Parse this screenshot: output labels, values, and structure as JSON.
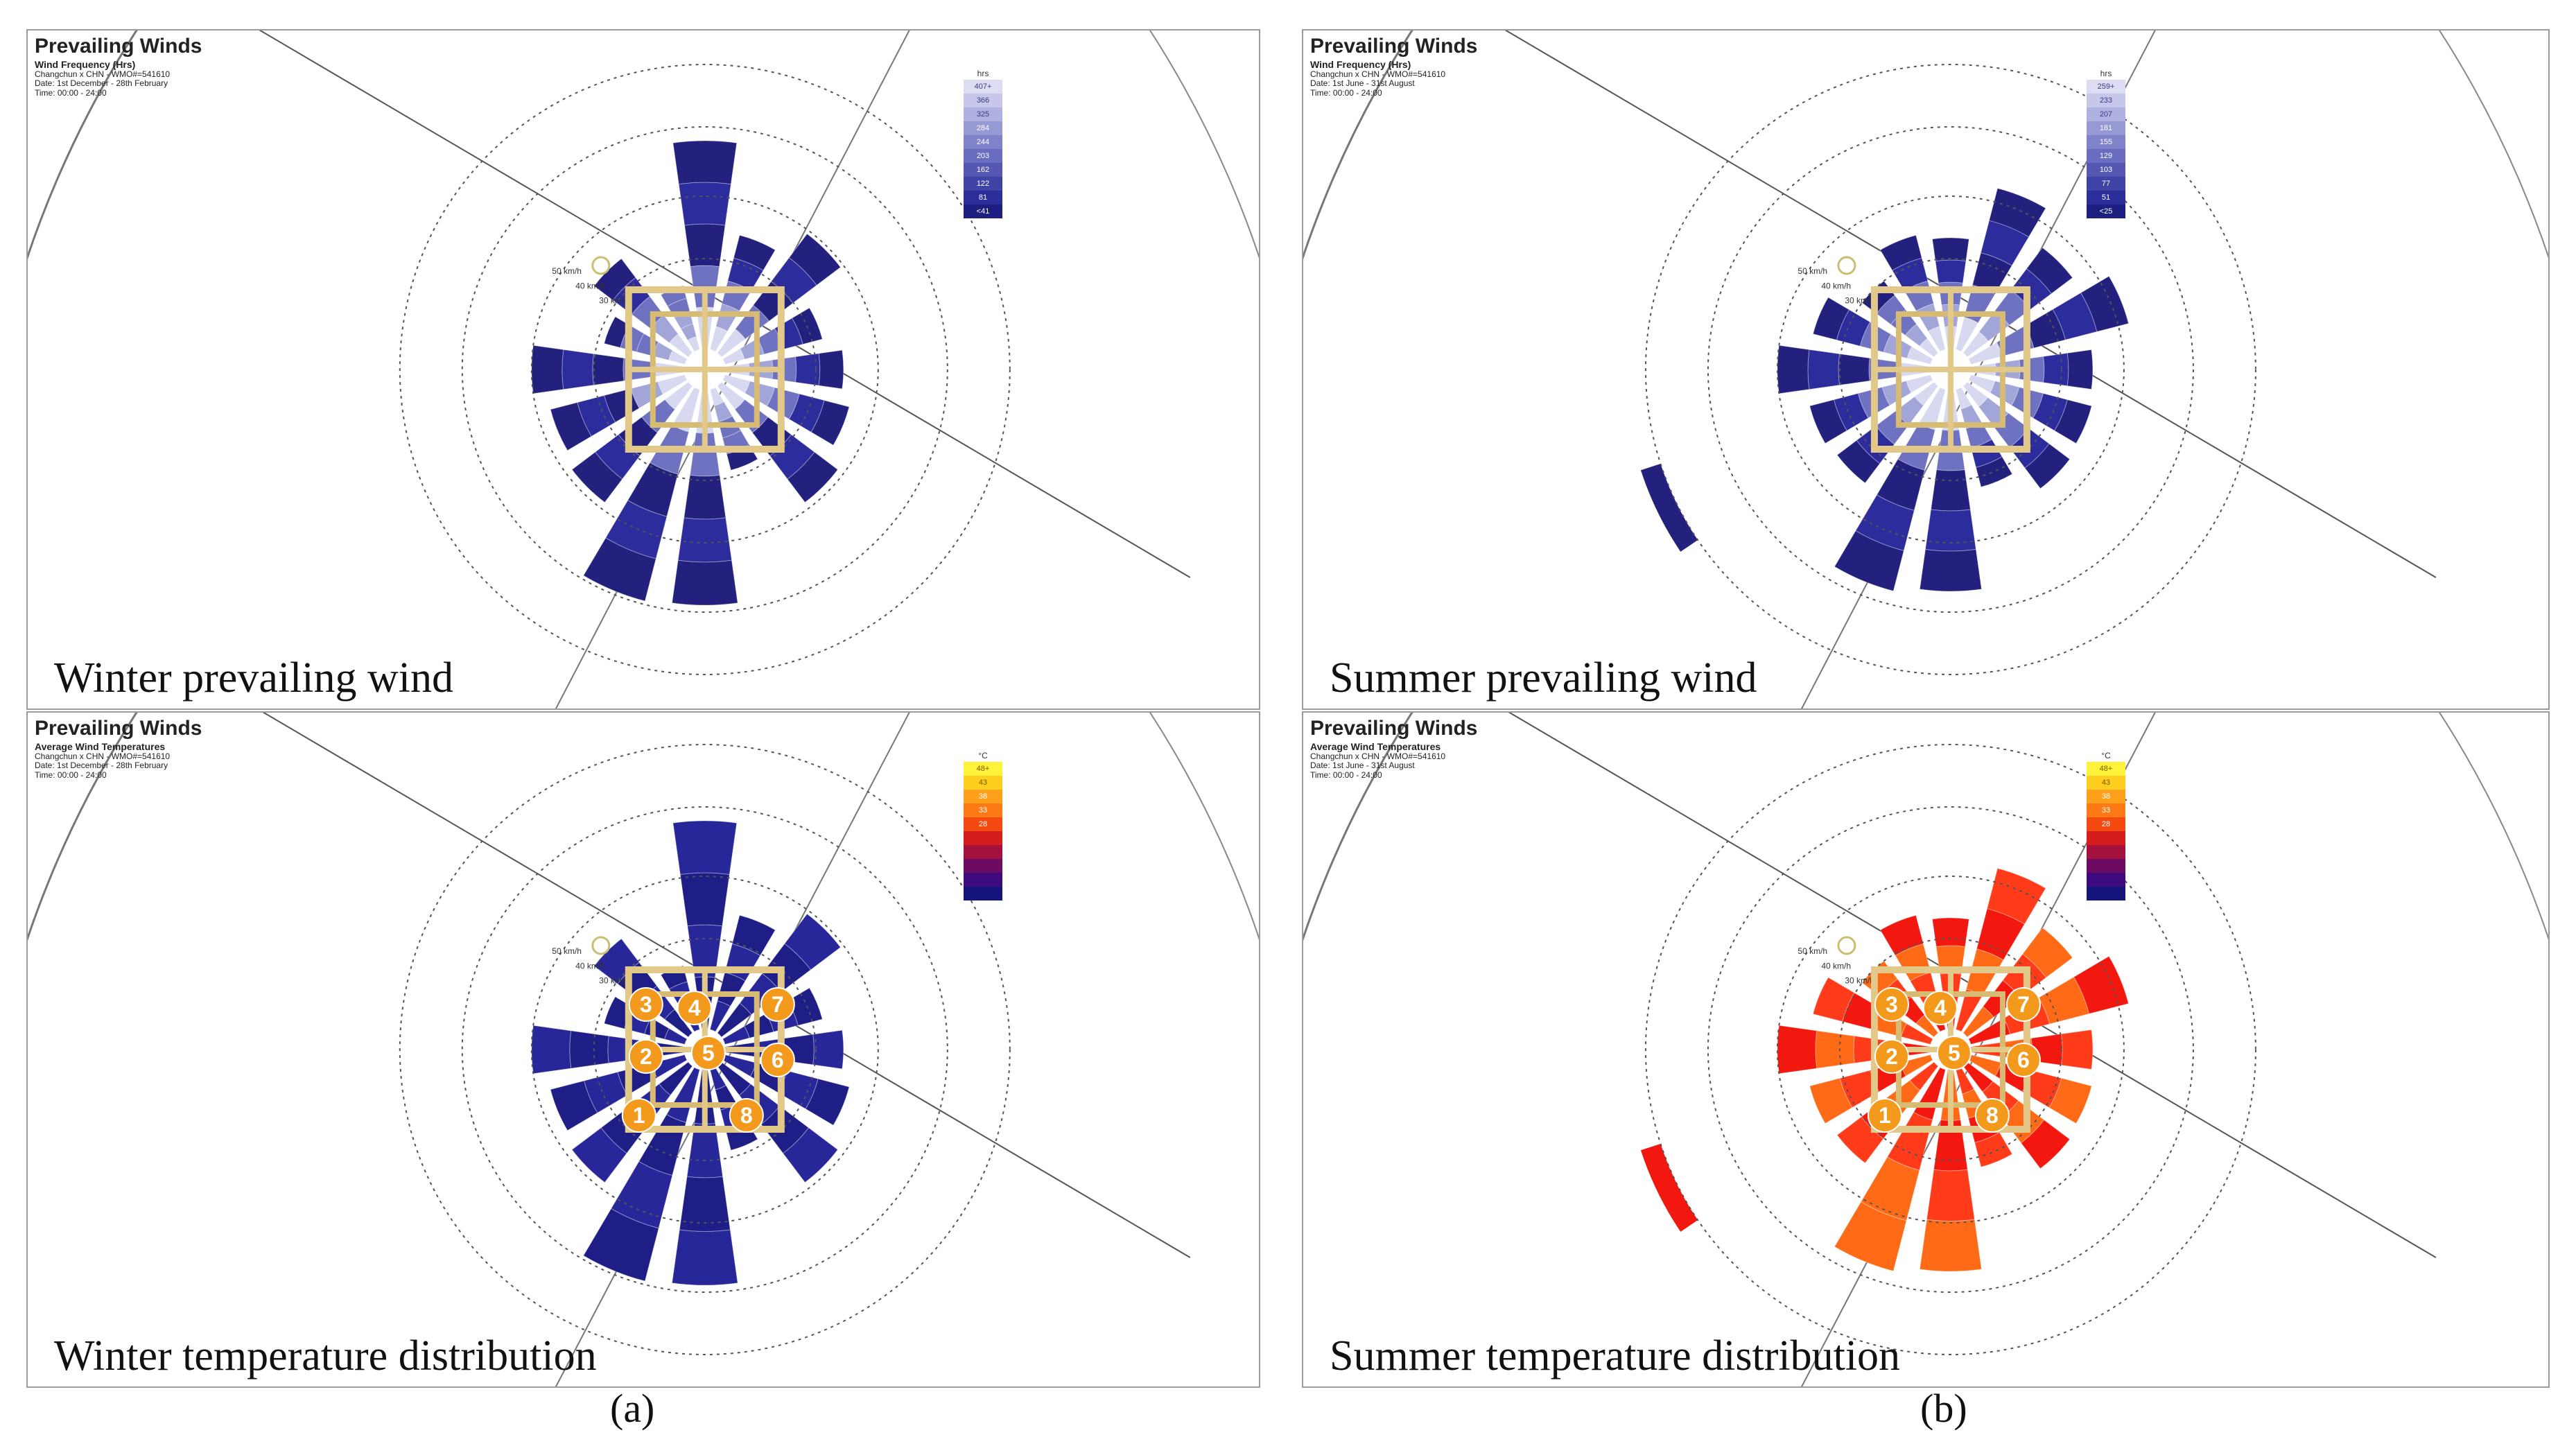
{
  "panels": [
    {
      "header": {
        "title": "Prevailing Winds",
        "subtitle": "Wind Frequency (Hrs)",
        "location": "Changchun x CHN - WMO#=541610",
        "date": "Date: 1st December - 28th February",
        "time": "Time: 00:00 - 24:00"
      },
      "caption": "Winter prevailing wind",
      "mode": "freq",
      "season": "winter",
      "legend": {
        "unit": "hrs",
        "labels": [
          "407+",
          "366",
          "325",
          "284",
          "244",
          "203",
          "162",
          "122",
          "81",
          "<41"
        ]
      },
      "colors": [
        "#23207e",
        "#2c2c9c",
        "#4848aa",
        "#6f72c0",
        "#a2a5d8",
        "#d7d9f1"
      ]
    },
    {
      "header": {
        "title": "Prevailing Winds",
        "subtitle": "Wind Frequency (Hrs)",
        "location": "Changchun x CHN - WMO#=541610",
        "date": "Date: 1st June - 31st August",
        "time": "Time: 00:00 - 24:00"
      },
      "caption": "Summer prevailing wind",
      "mode": "freq",
      "season": "summer",
      "legend": {
        "unit": "hrs",
        "labels": [
          "259+",
          "233",
          "207",
          "181",
          "155",
          "129",
          "103",
          "77",
          "51",
          "<25"
        ]
      },
      "colors": [
        "#23207e",
        "#2c2c9c",
        "#4848aa",
        "#6f72c0",
        "#a2a5d8",
        "#d7d9f1"
      ]
    },
    {
      "header": {
        "title": "Prevailing Winds",
        "subtitle": "Average Wind Temperatures",
        "location": "Changchun x CHN - WMO#=541610",
        "date": "Date: 1st December - 28th February",
        "time": "Time: 00:00 - 24:00"
      },
      "caption": "Winter temperature distribution",
      "mode": "temp",
      "season": "winter",
      "legend": {
        "unit": "°C",
        "labels": [
          "48+",
          "43",
          "38",
          "33",
          "28",
          "",
          "",
          "",
          "",
          ""
        ]
      },
      "colors": [
        "#1e1e86",
        "#27279a"
      ]
    },
    {
      "header": {
        "title": "Prevailing Winds",
        "subtitle": "Average Wind Temperatures",
        "location": "Changchun x CHN - WMO#=541610",
        "date": "Date: 1st June - 31st August",
        "time": "Time: 00:00 - 24:00"
      },
      "caption": "Summer temperature distribution",
      "mode": "temp",
      "season": "summer",
      "legend": {
        "unit": "°C",
        "labels": [
          "48+",
          "43",
          "38",
          "33",
          "28",
          "",
          "",
          "",
          "",
          ""
        ]
      },
      "colors": [
        "#f2180f",
        "#ff3b1a",
        "#ff6a16"
      ]
    }
  ],
  "building_labels": [
    "1",
    "2",
    "3",
    "4",
    "5",
    "6",
    "7",
    "8"
  ],
  "ring_labels": [
    "50 km/h",
    "40 km/h",
    "30 km/h"
  ],
  "legend_temp_colors": [
    "#fff23a",
    "#ffce1e",
    "#ffa01b",
    "#ff7a14",
    "#f44a10",
    "#d61d1d",
    "#a4113d",
    "#6d0a61",
    "#3d0b7d",
    "#16157b"
  ],
  "legend_freq_colors": [
    "#dcdcf2",
    "#c6c7ea",
    "#afb1e0",
    "#9799d5",
    "#8082ca",
    "#6a6cbf",
    "#5557b3",
    "#4043a6",
    "#2c2f99",
    "#1d1f80"
  ],
  "figure_labels": [
    "(a)",
    "(b)"
  ]
}
